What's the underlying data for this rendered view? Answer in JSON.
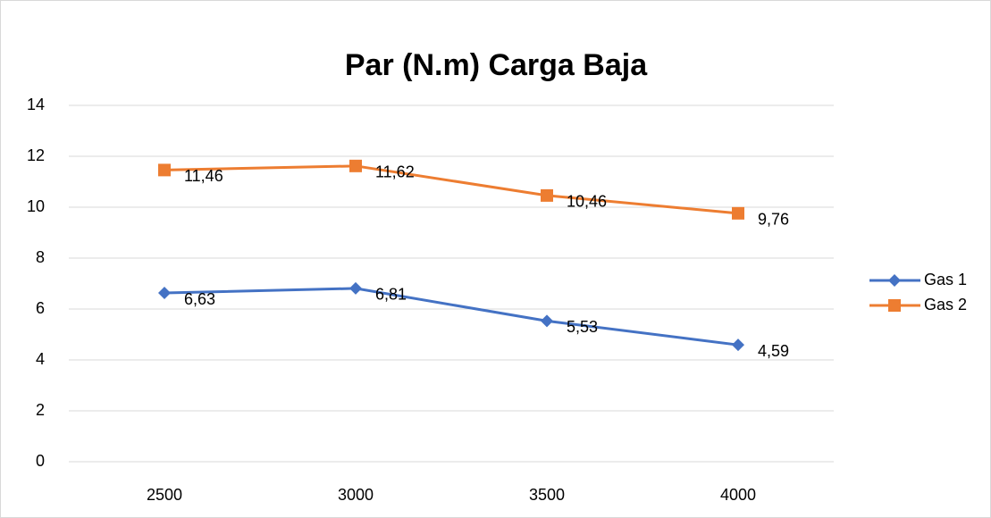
{
  "chart_data": {
    "type": "line",
    "title": "Par (N.m) Carga Baja",
    "categories": [
      "2500",
      "3000",
      "3500",
      "4000"
    ],
    "series": [
      {
        "name": "Gas 1",
        "color": "#4472c4",
        "marker": "diamond",
        "values": [
          6.63,
          6.81,
          5.53,
          4.59
        ],
        "value_labels": [
          "6,63",
          "6,81",
          "5,53",
          "4,59"
        ]
      },
      {
        "name": "Gas 2",
        "color": "#ed7d31",
        "marker": "square",
        "values": [
          11.46,
          11.62,
          10.46,
          9.76
        ],
        "value_labels": [
          "11,46",
          "11,62",
          "10,46",
          "9,76"
        ]
      }
    ],
    "ylim": [
      0,
      14
    ],
    "yticks": [
      0,
      2,
      4,
      6,
      8,
      10,
      12,
      14
    ],
    "grid": true,
    "legend": "right"
  }
}
